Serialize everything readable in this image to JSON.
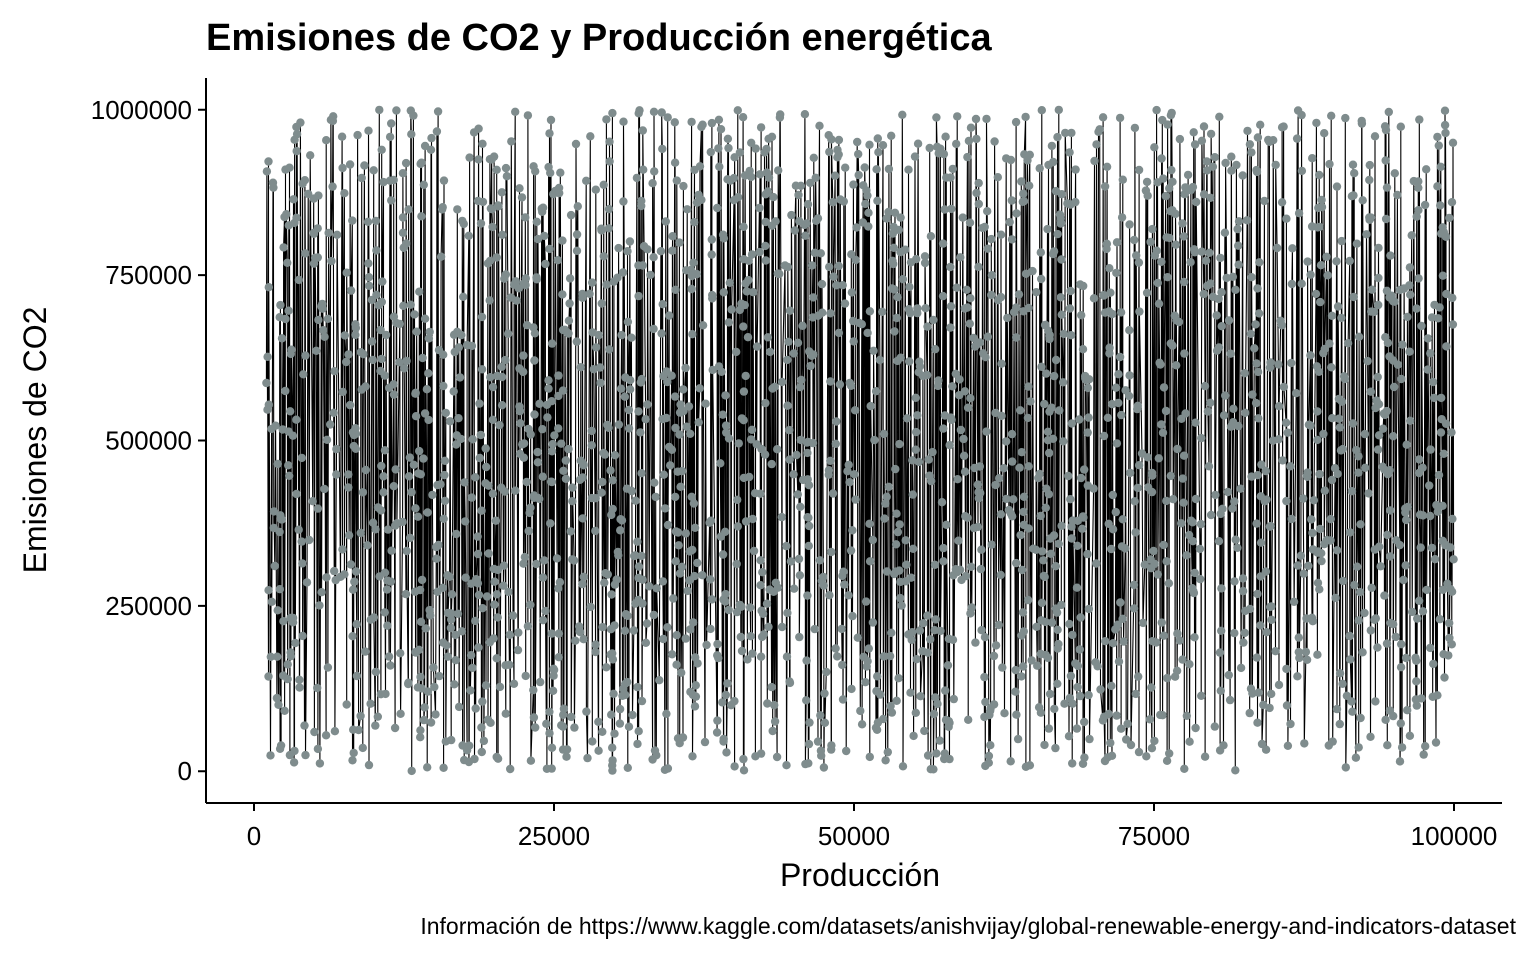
{
  "chart_data": {
    "type": "line",
    "title": "Emisiones de CO2 y Producción energética",
    "xlabel": "Producción",
    "ylabel": "Emisiones de CO2",
    "caption": "Información de https://www.kaggle.com/datasets/anishvijay/global-renewable-energy-and-indicators-dataset",
    "xlim": [
      -4000,
      104000
    ],
    "ylim": [
      -48000,
      1048000
    ],
    "x_range": [
      1000,
      100000
    ],
    "y_range": [
      0,
      1000000
    ],
    "n_points": 2500,
    "x_ticks": [
      0,
      25000,
      50000,
      75000,
      100000
    ],
    "x_tick_labels": [
      "0",
      "25000",
      "50000",
      "75000",
      "100000"
    ],
    "y_ticks": [
      0,
      250000,
      500000,
      750000,
      1000000
    ],
    "y_tick_labels": [
      "0",
      "250000",
      "500000",
      "750000",
      "1000000"
    ],
    "series": [
      {
        "line_color": "#000000",
        "point_color": "#7f8c8d"
      }
    ],
    "grid": false,
    "legend": "none"
  }
}
